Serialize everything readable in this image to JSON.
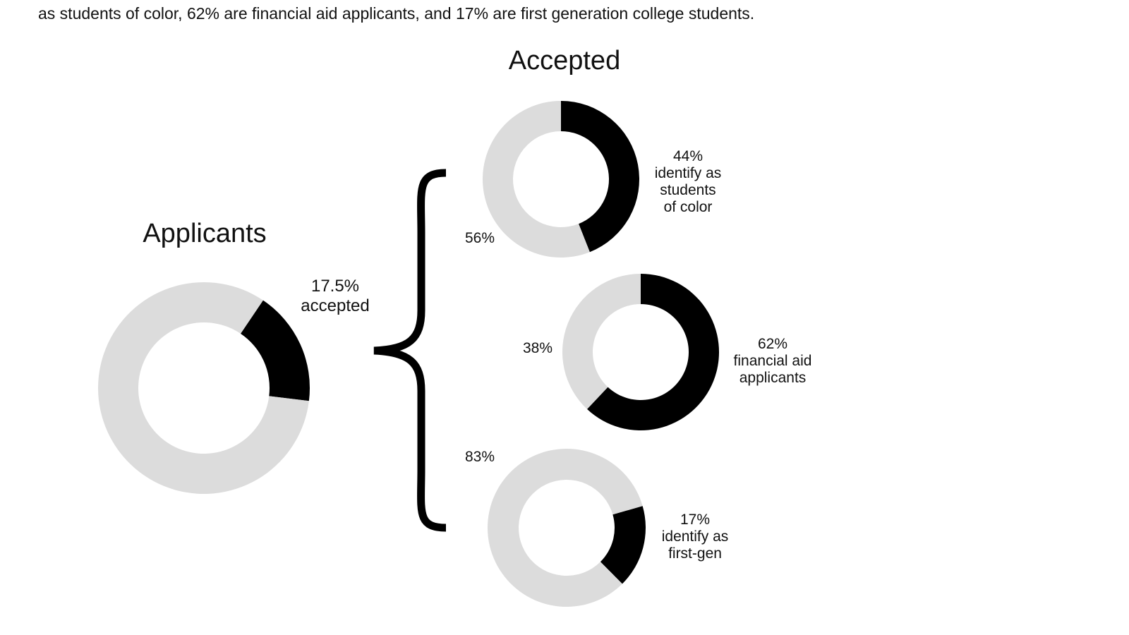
{
  "intro_text": "as students of color, 62% are financial aid applicants, and 17% are first generation college students.",
  "colors": {
    "filled": "#000000",
    "remainder": "#dcdcdc"
  },
  "chart_data": [
    {
      "type": "pie",
      "variant": "donut",
      "title": "Applicants",
      "slices": [
        {
          "label": "17.5% accepted",
          "value": 17.5,
          "text": [
            "17.5%",
            "accepted"
          ]
        },
        {
          "label": "",
          "value": 82.5
        }
      ],
      "start_angle_deg": 34
    },
    {
      "type": "pie",
      "variant": "donut",
      "group_title": "Accepted",
      "slices": [
        {
          "label": "44% identify as students of color",
          "value": 44,
          "text": [
            "44%",
            "identify as",
            "students",
            "of color"
          ]
        },
        {
          "label": "56%",
          "value": 56
        }
      ],
      "start_angle_deg": 0
    },
    {
      "type": "pie",
      "variant": "donut",
      "slices": [
        {
          "label": "62% financial aid applicants",
          "value": 62,
          "text": [
            "62%",
            "financial aid",
            "applicants"
          ]
        },
        {
          "label": "38%",
          "value": 38
        }
      ],
      "start_angle_deg": 0
    },
    {
      "type": "pie",
      "variant": "donut",
      "slices": [
        {
          "label": "17% identify as first-gen",
          "value": 17,
          "text": [
            "17%",
            "identify as",
            "first-gen"
          ]
        },
        {
          "label": "83%",
          "value": 83
        }
      ],
      "start_angle_deg": 74
    }
  ]
}
